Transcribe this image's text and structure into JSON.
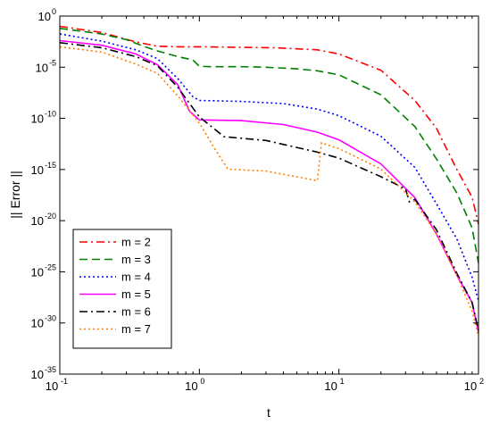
{
  "chart_data": {
    "type": "line",
    "xlabel": "t",
    "ylabel": "|| Error ||",
    "x_scale": "log",
    "y_scale": "log",
    "xlim": [
      0.1,
      100
    ],
    "ylim": [
      1e-35,
      1
    ],
    "grid": false,
    "legend_position": "bottom-left",
    "x_ticks": [
      {
        "base": "10",
        "exp": "-1",
        "value": 0.1
      },
      {
        "base": "10",
        "exp": "0",
        "value": 1
      },
      {
        "base": "10",
        "exp": "1",
        "value": 10
      },
      {
        "base": "10",
        "exp": "2",
        "value": 100
      }
    ],
    "y_ticks": [
      {
        "base": "10",
        "exp": "0",
        "value": 1
      },
      {
        "base": "10",
        "exp": "-5",
        "value": 1e-05
      },
      {
        "base": "10",
        "exp": "-10",
        "value": 1e-10
      },
      {
        "base": "10",
        "exp": "-15",
        "value": 1e-15
      },
      {
        "base": "10",
        "exp": "-20",
        "value": 1e-20
      },
      {
        "base": "10",
        "exp": "-25",
        "value": 1e-25
      },
      {
        "base": "10",
        "exp": "-30",
        "value": 1e-30
      },
      {
        "base": "10",
        "exp": "-35",
        "value": 1e-35
      }
    ],
    "series": [
      {
        "name": "m = 2",
        "color": "#ff0000",
        "dash": "dashdot",
        "points": [
          [
            0.1,
            0.1
          ],
          [
            0.2,
            0.025
          ],
          [
            0.35,
            0.003
          ],
          [
            0.5,
            0.00112
          ],
          [
            0.7,
            0.001
          ],
          [
            1,
            0.001
          ],
          [
            2,
            0.00089
          ],
          [
            3.5,
            0.00079
          ],
          [
            7,
            0.0005
          ],
          [
            10,
            0.0002
          ],
          [
            20,
            5e-06
          ],
          [
            35,
            5.6e-09
          ],
          [
            50,
            1.1e-11
          ],
          [
            70,
            1e-15
          ],
          [
            90,
            2e-18
          ],
          [
            100,
            4.5e-21
          ]
        ]
      },
      {
        "name": "m = 3",
        "color": "#008000",
        "dash": "dashed",
        "points": [
          [
            0.1,
            0.063
          ],
          [
            0.2,
            0.0177
          ],
          [
            0.3,
            0.005
          ],
          [
            0.4,
            0.0011
          ],
          [
            0.5,
            0.000398
          ],
          [
            0.7,
            0.00011
          ],
          [
            0.9,
            5e-05
          ],
          [
            1,
            1.25e-05
          ],
          [
            1.2,
            1.12e-05
          ],
          [
            2,
            1.12e-05
          ],
          [
            3,
            1e-05
          ],
          [
            5,
            7e-06
          ],
          [
            7,
            4.5e-06
          ],
          [
            10,
            1.8e-06
          ],
          [
            20,
            2e-08
          ],
          [
            35,
            1.6e-11
          ],
          [
            50,
            1.1e-14
          ],
          [
            70,
            5e-18
          ],
          [
            90,
            2e-21
          ],
          [
            100,
            7e-25
          ]
        ]
      },
      {
        "name": "m = 4",
        "color": "#0000ff",
        "dash": "dotted",
        "points": [
          [
            0.1,
            0.018
          ],
          [
            0.2,
            0.0035
          ],
          [
            0.35,
            0.0005
          ],
          [
            0.5,
            7e-05
          ],
          [
            0.7,
            8e-07
          ],
          [
            0.9,
            1.25e-08
          ],
          [
            1,
            5.6e-09
          ],
          [
            2,
            4.5e-09
          ],
          [
            4,
            2.8e-09
          ],
          [
            7,
            8e-10
          ],
          [
            10,
            1.8e-10
          ],
          [
            20,
            1.8e-12
          ],
          [
            35,
            1.6e-15
          ],
          [
            50,
            4.5e-19
          ],
          [
            70,
            1.6e-22
          ],
          [
            90,
            3e-26
          ],
          [
            100,
            1.4e-28
          ]
        ]
      },
      {
        "name": "m = 5",
        "color": "#ff00ff",
        "dash": "solid",
        "points": [
          [
            0.1,
            0.004
          ],
          [
            0.2,
            0.0014
          ],
          [
            0.35,
            0.0002
          ],
          [
            0.5,
            1.8e-05
          ],
          [
            0.7,
            2e-07
          ],
          [
            0.85,
            5e-10
          ],
          [
            1,
            7e-11
          ],
          [
            2,
            6e-11
          ],
          [
            4,
            2.5e-11
          ],
          [
            7,
            4.5e-12
          ],
          [
            10,
            8e-13
          ],
          [
            20,
            3.5e-15
          ],
          [
            35,
            1.8e-18
          ],
          [
            50,
            5e-22
          ],
          [
            70,
            4.5e-26
          ],
          [
            90,
            1e-28
          ],
          [
            100,
            1.3e-31
          ]
        ]
      },
      {
        "name": "m = 6",
        "color": "#000000",
        "dash": "dashdot",
        "points": [
          [
            0.1,
            0.0025
          ],
          [
            0.2,
            0.0008
          ],
          [
            0.35,
            0.00011
          ],
          [
            0.5,
            1.4e-05
          ],
          [
            0.7,
            1.1e-07
          ],
          [
            1,
            1.4e-10
          ],
          [
            1.5,
            1.6e-12
          ],
          [
            3,
            7e-13
          ],
          [
            7,
            5e-14
          ],
          [
            10,
            1.3e-14
          ],
          [
            20,
            2e-16
          ],
          [
            30,
            1.25e-17
          ],
          [
            32,
            7e-19
          ],
          [
            35,
            1.2e-18
          ],
          [
            50,
            1.3e-21
          ],
          [
            70,
            7e-26
          ],
          [
            90,
            1e-28
          ],
          [
            100,
            1.8e-31
          ]
        ]
      },
      {
        "name": "m = 7",
        "color": "#ff8000",
        "dash": "dotted",
        "points": [
          [
            0.1,
            0.001
          ],
          [
            0.2,
            0.0003
          ],
          [
            0.35,
            2e-05
          ],
          [
            0.5,
            2.5e-06
          ],
          [
            0.7,
            1.6e-08
          ],
          [
            1,
            3.5e-11
          ],
          [
            1.3,
            8.9e-14
          ],
          [
            1.6,
            1.1e-15
          ],
          [
            3,
            7e-16
          ],
          [
            7,
            8e-17
          ],
          [
            7.5,
            4e-13
          ],
          [
            10,
            1.1e-13
          ],
          [
            20,
            1.1e-15
          ],
          [
            35,
            7e-19
          ],
          [
            50,
            5e-22
          ],
          [
            70,
            4.5e-26
          ],
          [
            90,
            1.4e-29
          ],
          [
            100,
            5e-32
          ]
        ]
      }
    ]
  }
}
